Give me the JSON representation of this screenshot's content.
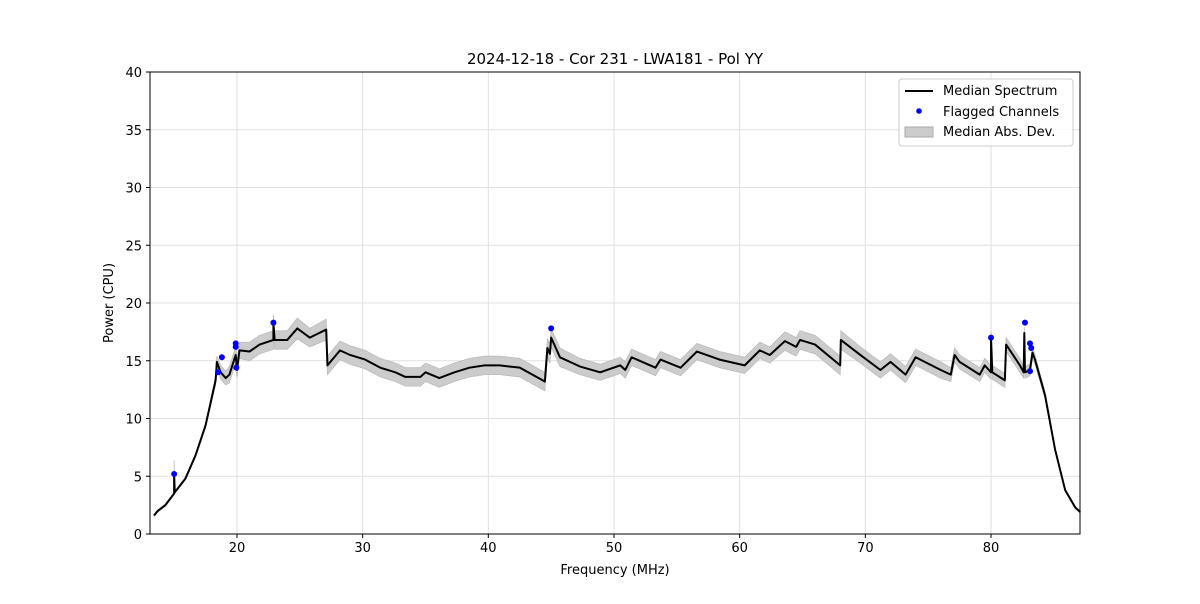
{
  "chart_data": {
    "type": "line",
    "title": "2024-12-18 - Cor 231 - LWA181 - Pol YY",
    "xlabel": "Frequency (MHz)",
    "ylabel": "Power (CPU)",
    "xlim": [
      13.08,
      87.08
    ],
    "ylim": [
      0,
      40
    ],
    "xticks": [
      20,
      30,
      40,
      50,
      60,
      70,
      80
    ],
    "yticks": [
      0,
      5,
      10,
      15,
      20,
      25,
      30,
      35,
      40
    ],
    "grid": true,
    "legend_position": "top-right",
    "legend": [
      "Median Spectrum",
      "Flagged Channels",
      "Median Abs. Dev."
    ],
    "colors": {
      "line": "#000000",
      "flag": "#0000ff",
      "band": "#cccccc"
    },
    "series": [
      {
        "name": "Median Spectrum",
        "x": [
          13.4,
          13.7,
          14.3,
          15.0,
          15.0,
          15.05,
          15.9,
          16.7,
          17.5,
          18.3,
          18.4,
          18.7,
          19.1,
          19.4,
          19.9,
          20.0,
          20.2,
          21.0,
          21.8,
          22.9,
          22.9,
          23.0,
          24.0,
          24.8,
          25.8,
          27.1,
          27.2,
          28.2,
          29.0,
          30.2,
          31.4,
          32.6,
          33.4,
          34.6,
          35.0,
          36.1,
          37.3,
          38.5,
          39.7,
          40.9,
          42.5,
          44.5,
          44.7,
          44.9,
          45.0,
          45.7,
          47.3,
          48.9,
          50.5,
          50.9,
          51.4,
          53.3,
          53.7,
          55.3,
          56.6,
          58.4,
          60.4,
          61.6,
          62.4,
          63.6,
          64.5,
          64.8,
          66.0,
          68.0,
          68.05,
          69.6,
          71.2,
          72.0,
          73.2,
          74.0,
          76.0,
          76.8,
          77.1,
          77.5,
          79.1,
          79.5,
          80.0,
          80.0,
          80.1,
          81.1,
          81.2,
          82.3,
          82.6,
          82.65,
          82.7,
          83.1,
          83.3,
          83.5,
          84.3,
          85.1,
          85.9,
          86.7,
          87.1
        ],
        "y": [
          1.6,
          2.0,
          2.5,
          3.5,
          5.2,
          3.6,
          4.8,
          6.8,
          9.4,
          13.3,
          14.9,
          14.0,
          13.5,
          13.8,
          15.5,
          14.2,
          15.9,
          15.8,
          16.4,
          16.8,
          18.2,
          16.8,
          16.8,
          17.8,
          17.0,
          17.7,
          14.6,
          15.9,
          15.5,
          15.1,
          14.4,
          14.0,
          13.6,
          13.6,
          14.0,
          13.5,
          14.0,
          14.4,
          14.6,
          14.6,
          14.4,
          13.2,
          16.1,
          15.6,
          17.0,
          15.3,
          14.5,
          14.0,
          14.6,
          14.2,
          15.3,
          14.4,
          15.1,
          14.4,
          15.8,
          15.1,
          14.6,
          15.9,
          15.5,
          16.7,
          16.2,
          16.8,
          16.4,
          14.6,
          16.8,
          15.5,
          14.2,
          14.9,
          13.8,
          15.3,
          14.2,
          13.8,
          15.5,
          14.9,
          13.8,
          14.6,
          14.0,
          17.0,
          14.0,
          13.3,
          16.4,
          14.6,
          14.0,
          17.4,
          14.0,
          14.2,
          15.7,
          15.1,
          12.0,
          7.3,
          3.8,
          2.3,
          1.9
        ],
        "mad": [
          0.1,
          0.1,
          0.1,
          0.1,
          1.2,
          0.1,
          0.1,
          0.1,
          0.2,
          0.4,
          0.5,
          0.6,
          0.6,
          0.7,
          0.7,
          0.7,
          0.7,
          0.8,
          0.8,
          0.8,
          0.8,
          0.8,
          0.8,
          0.9,
          0.8,
          0.9,
          0.8,
          0.8,
          0.8,
          0.8,
          0.8,
          0.8,
          0.8,
          0.8,
          0.8,
          0.8,
          0.8,
          0.8,
          0.8,
          0.8,
          0.8,
          0.8,
          0.8,
          0.8,
          0.8,
          0.8,
          0.7,
          0.7,
          0.7,
          0.7,
          0.7,
          0.7,
          0.7,
          0.7,
          0.7,
          0.7,
          0.7,
          0.7,
          0.7,
          0.8,
          0.8,
          0.8,
          0.8,
          0.8,
          0.8,
          0.7,
          0.7,
          0.7,
          0.7,
          0.7,
          0.7,
          0.6,
          0.6,
          0.6,
          0.6,
          0.6,
          0.6,
          0.6,
          0.6,
          0.6,
          0.6,
          0.6,
          0.5,
          0.5,
          0.5,
          0.5,
          0.5,
          0.4,
          0.3,
          0.1,
          0.1,
          0.1,
          0.1
        ]
      }
    ],
    "flagged": {
      "name": "Flagged Channels",
      "x": [
        15.0,
        18.5,
        18.8,
        19.9,
        19.9,
        19.95,
        22.9,
        45.0,
        80.0,
        82.7,
        83.1,
        83.2,
        83.1
      ],
      "y": [
        5.2,
        14.0,
        15.3,
        16.5,
        16.2,
        14.4,
        18.3,
        17.8,
        17.0,
        18.3,
        16.5,
        16.1,
        14.1
      ]
    }
  }
}
